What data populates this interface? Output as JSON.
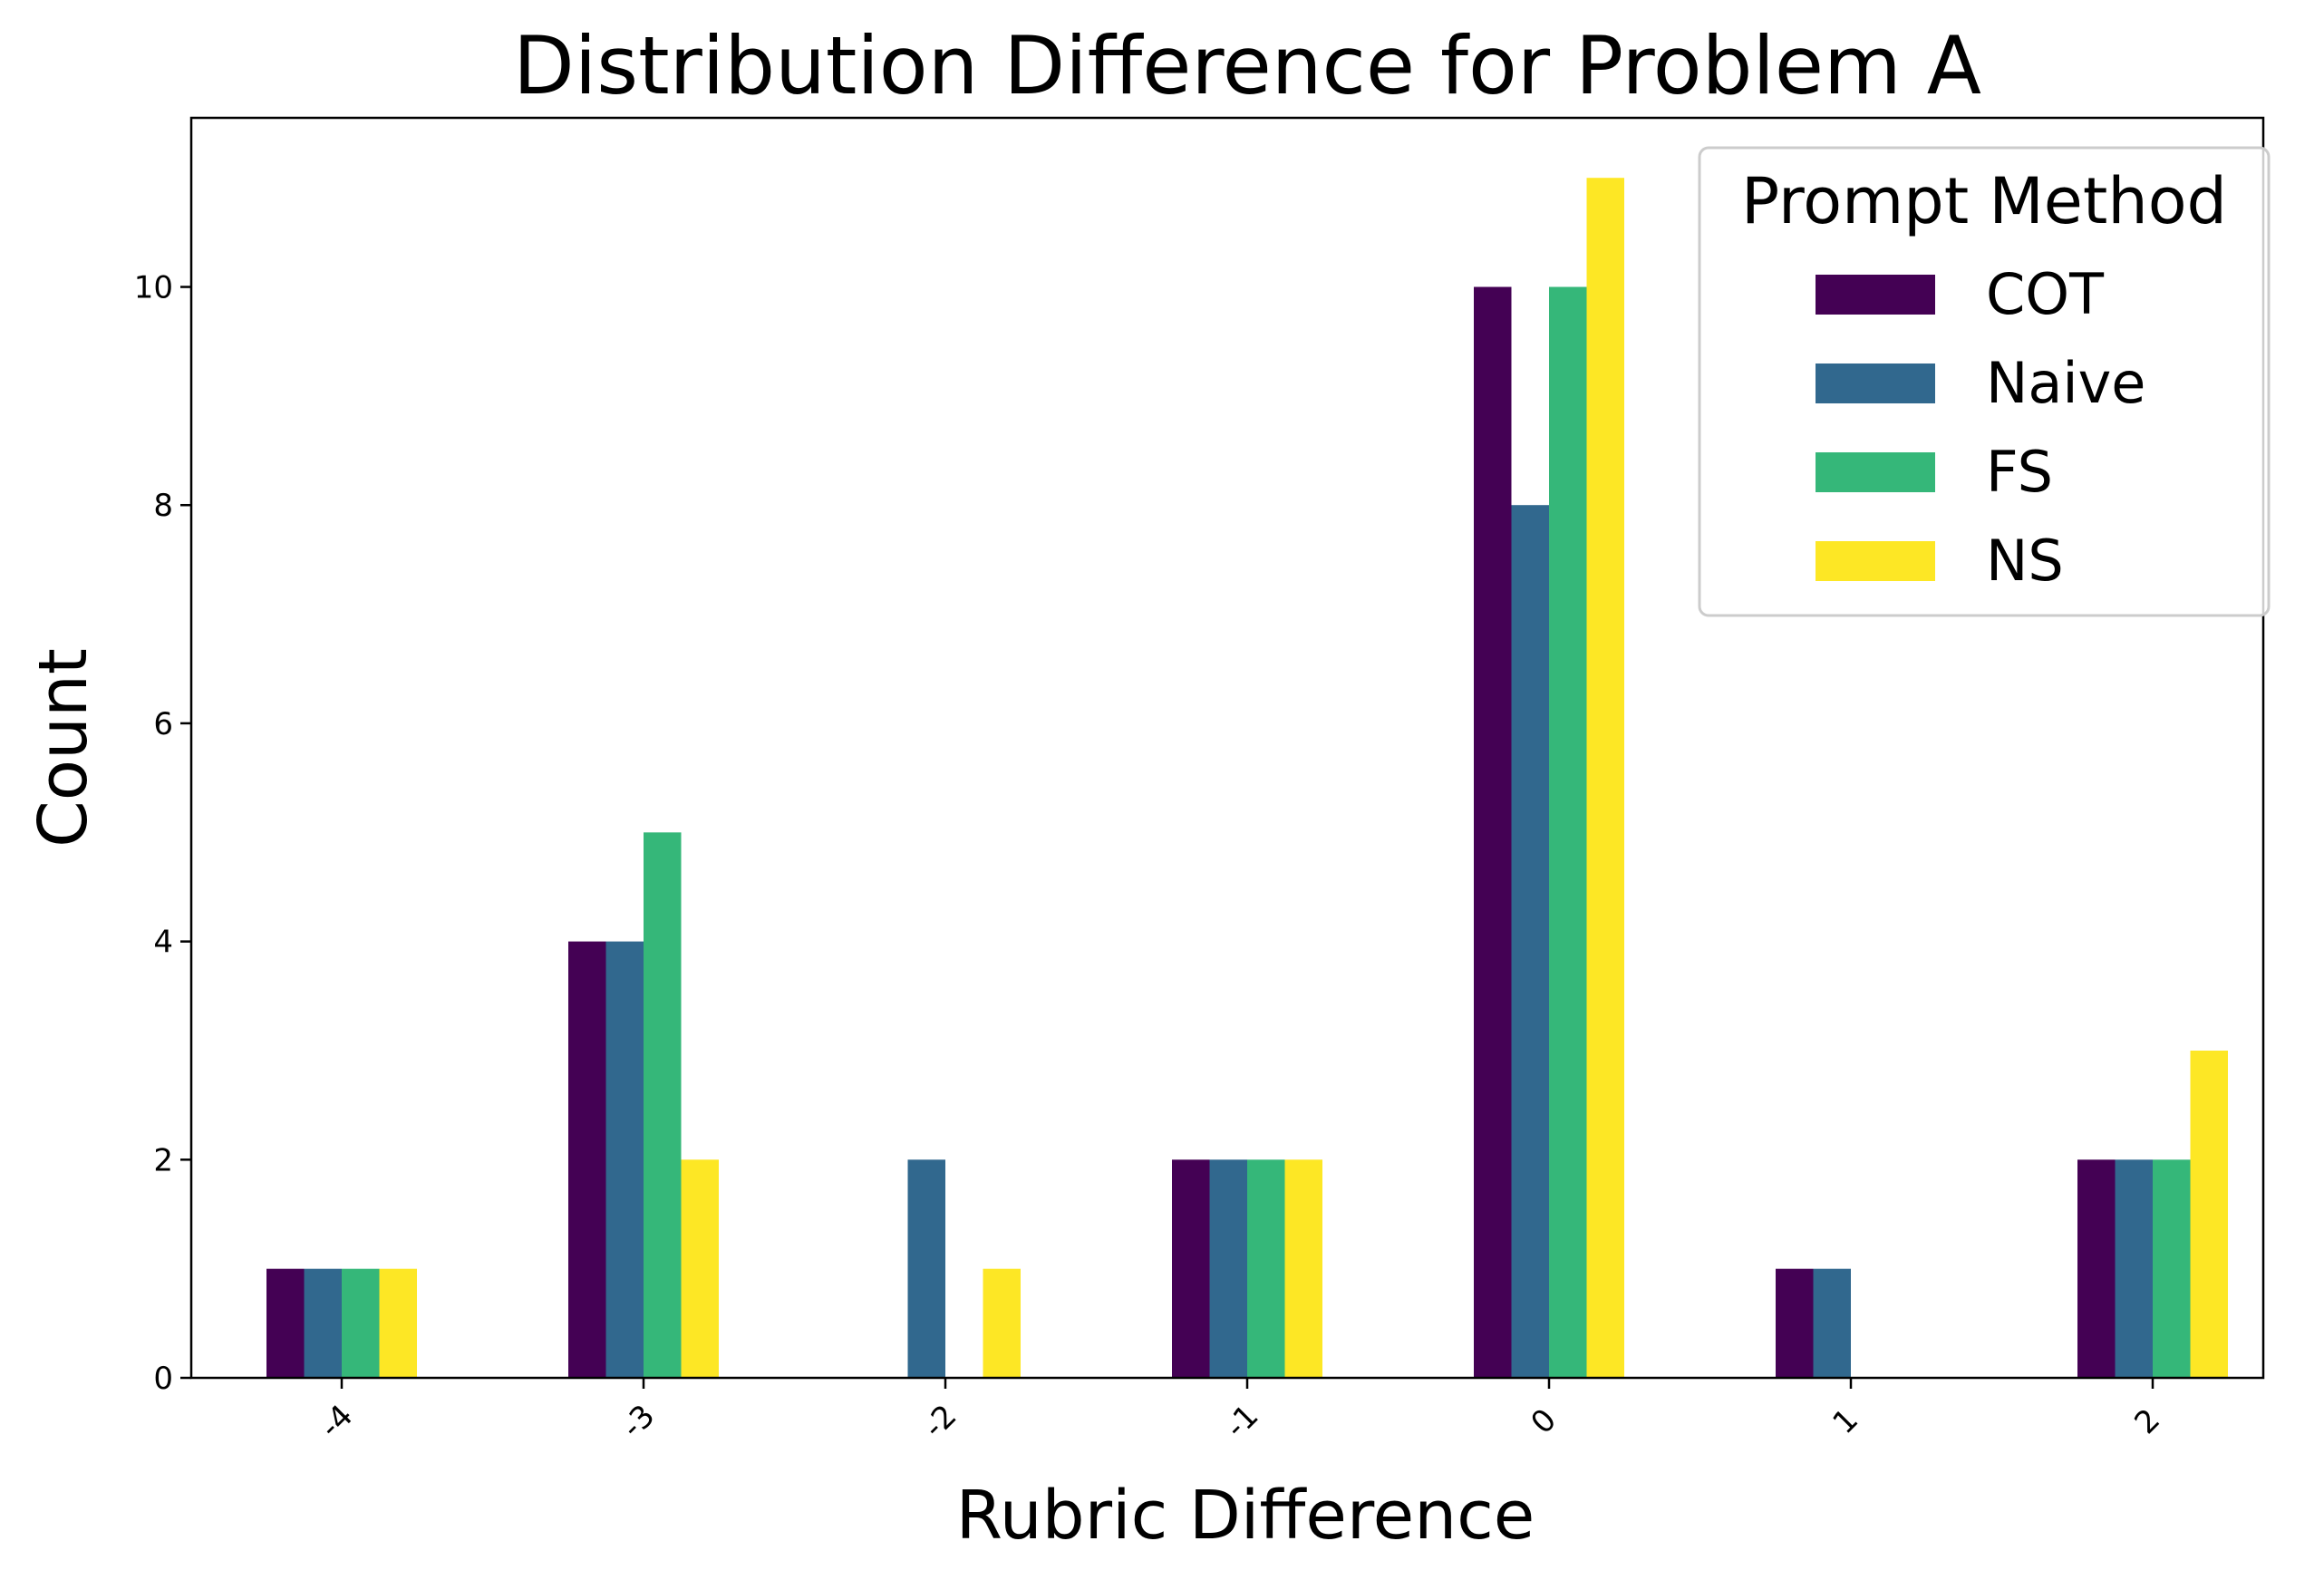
{
  "chart_data": {
    "type": "bar",
    "title": "Distribution Difference for Problem A",
    "xlabel": "Rubric Difference",
    "ylabel": "Count",
    "categories": [
      "-4",
      "-3",
      "-2",
      "-1",
      "0",
      "1",
      "2"
    ],
    "series": [
      {
        "name": "COT",
        "color": "#440154",
        "values": [
          1,
          4,
          0,
          2,
          10,
          1,
          2
        ]
      },
      {
        "name": "Naive",
        "color": "#31688e",
        "values": [
          1,
          4,
          2,
          2,
          8,
          1,
          2
        ]
      },
      {
        "name": "FS",
        "color": "#35b779",
        "values": [
          1,
          5,
          0,
          2,
          10,
          0,
          2
        ]
      },
      {
        "name": "NS",
        "color": "#fde725",
        "values": [
          1,
          2,
          1,
          2,
          11,
          0,
          3
        ]
      }
    ],
    "ylim": [
      0,
      11.55
    ],
    "yticks": [
      0,
      2,
      4,
      6,
      8,
      10
    ],
    "legend": {
      "title": "Prompt Method",
      "position": "top-right"
    },
    "grid": false
  }
}
